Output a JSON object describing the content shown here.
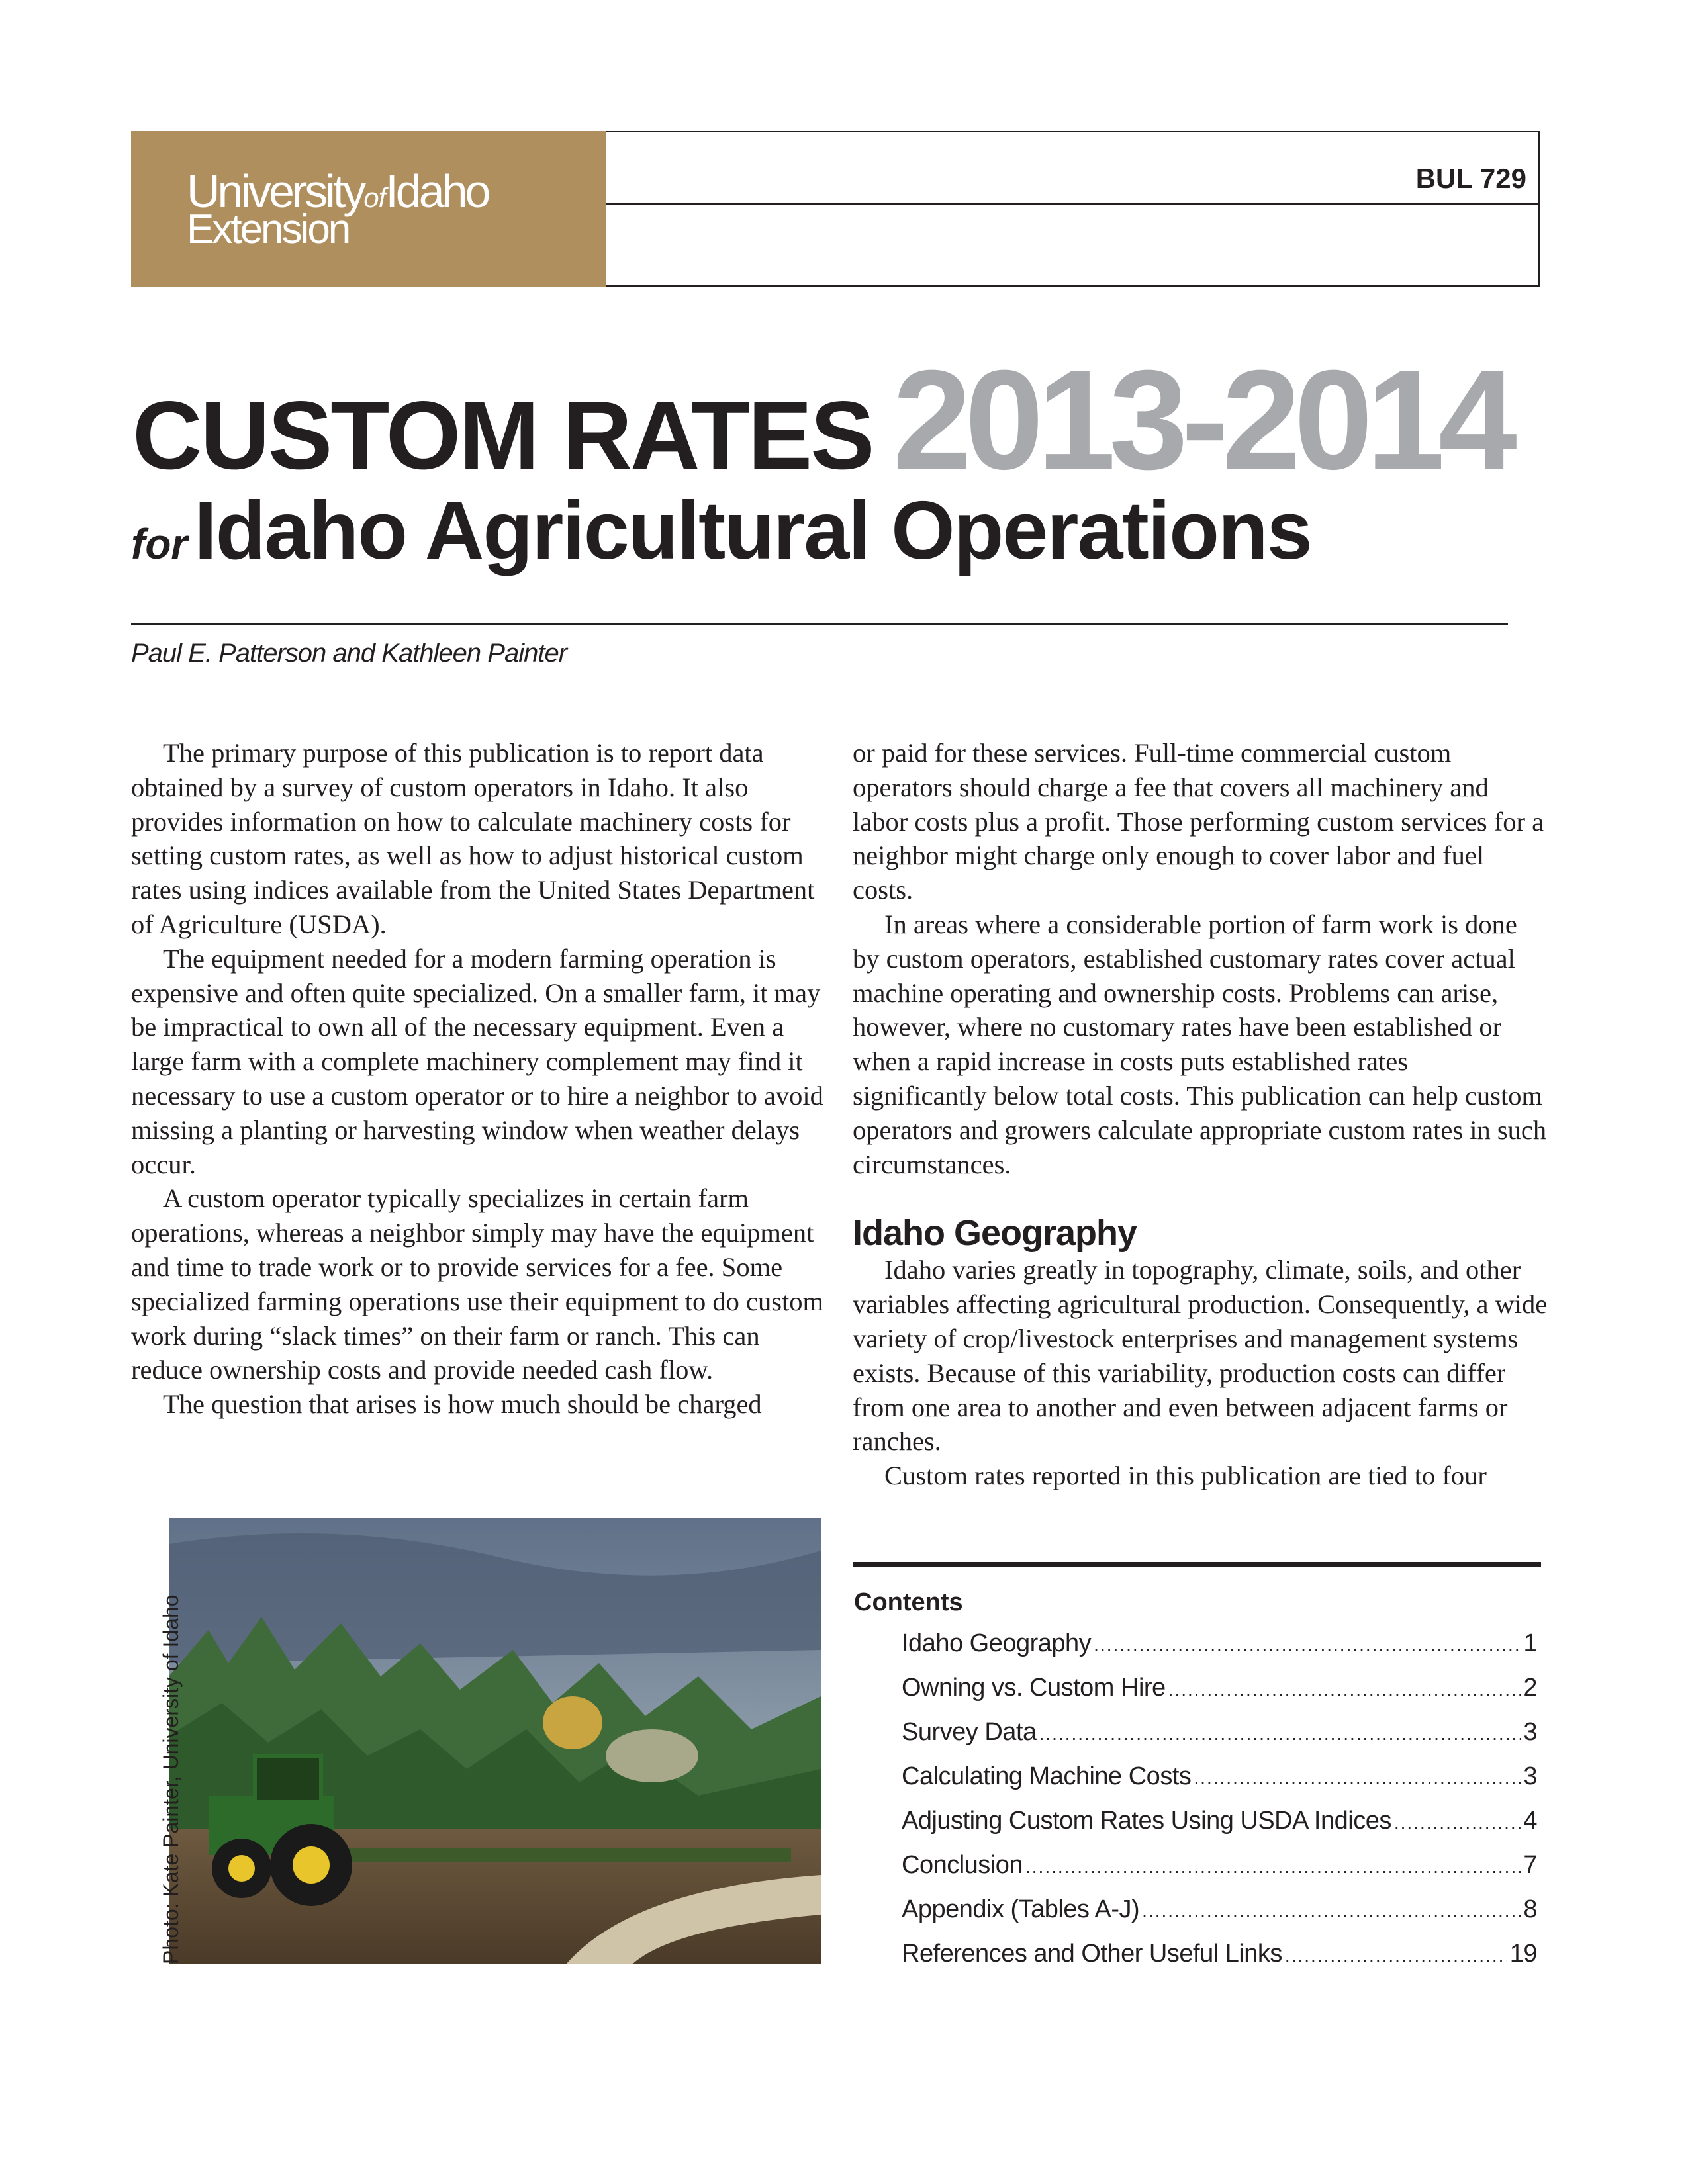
{
  "header": {
    "logo_line1_a": "University",
    "logo_line1_of": "of",
    "logo_line1_b": "Idaho",
    "logo_line2": "Extension",
    "bulletin": "BUL 729",
    "brand_color": "#b08f5f"
  },
  "title": {
    "main": "CUSTOM RATES",
    "years": "2013-2014",
    "subtitle_for": "for",
    "subtitle": "Idaho Agricultural Operations",
    "year_color": "#a7a9ac"
  },
  "authors": "Paul E. Patterson and Kathleen Painter",
  "body": {
    "left": [
      "The primary purpose of this publication is to report data obtained by a survey of custom operators in Idaho. It also provides information on how to calculate machinery costs for setting custom rates, as well as how to adjust historical custom rates using indices available from the United States Department of Agriculture (USDA).",
      "The equipment needed for a modern farming operation is expensive and often quite specialized. On a smaller farm, it may be impractical to own all of the necessary equipment. Even a large farm with a complete machinery complement may find it necessary to use a custom operator or to hire a neighbor to avoid missing a planting or harvesting window when weather delays occur.",
      "A custom operator typically specializes in certain farm operations, whereas a neighbor simply may have the equipment and time to trade work or to provide services for a fee. Some specialized farming operations use their equipment to do custom work during “slack times” on their farm or ranch. This can reduce ownership costs and provide needed cash flow.",
      "The question that arises is how much should be charged"
    ],
    "right": [
      "or paid for these services. Full-time commercial custom operators should charge a fee that covers all machinery and labor costs plus a profit. Those performing custom services for a neighbor might charge only enough to cover labor and fuel costs.",
      "In areas where a considerable portion of farm work is done by custom operators, established customary rates cover actual machine operating and ownership costs. Problems can arise, however, where no customary rates have been established or when a rapid increase in costs puts established rates significantly below total costs. This publication can help custom operators and growers calculate appropriate custom rates in such circumstances."
    ],
    "section_heading": "Idaho Geography",
    "section": [
      "Idaho varies greatly in topography, climate, soils, and other variables affecting agricultural production. Consequently, a wide variety of crop/livestock enterprises and management systems exists. Because of this variability, production costs can differ from one area to another and even between adjacent farms or ranches.",
      "Custom rates reported in this publication are tied to four"
    ]
  },
  "photo_credit": "Photo: Kate Painter, University of Idaho",
  "contents": {
    "title": "Contents",
    "items": [
      {
        "label": "Idaho Geography",
        "page": "1"
      },
      {
        "label": "Owning vs. Custom Hire",
        "page": "2"
      },
      {
        "label": "Survey Data",
        "page": "3"
      },
      {
        "label": "Calculating Machine Costs",
        "page": "3"
      },
      {
        "label": "Adjusting Custom Rates Using USDA Indices",
        "page": "4"
      },
      {
        "label": "Conclusion",
        "page": "7"
      },
      {
        "label": "Appendix (Tables A-J)",
        "page": "8"
      },
      {
        "label": "References and Other Useful Links",
        "page": "19"
      }
    ]
  }
}
